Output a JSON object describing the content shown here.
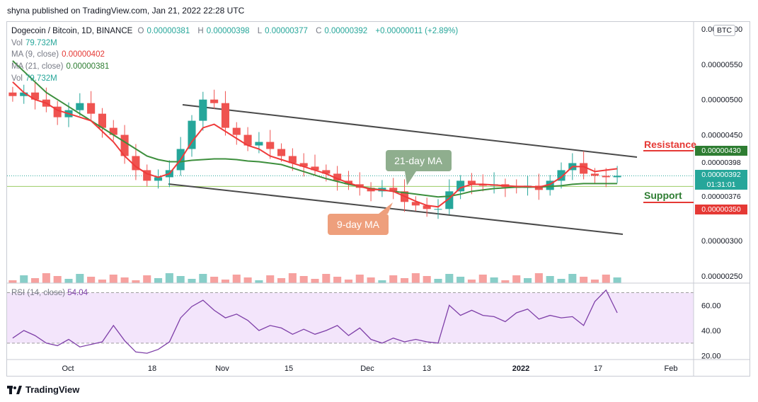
{
  "header": {
    "text": "shyna published on TradingView.com, Jan 21, 2022 22:28 UTC"
  },
  "legend": {
    "symbol": "Dogecoin / Bitcoin, 1D, BINANCE",
    "open_label": "O",
    "open": "0.00000381",
    "high_label": "H",
    "high": "0.00000398",
    "low_label": "L",
    "low": "0.00000377",
    "close_label": "C",
    "close": "0.00000392",
    "change": "+0.00000011 (+2.89%)",
    "vol_label": "Vol",
    "vol_value": "79.732M",
    "ma9_label": "MA (9, close)",
    "ma9_value": "0.00000402",
    "ma21_label": "MA (21, close)",
    "ma21_value": "0.00000381",
    "vol2_label": "Vol",
    "vol2_value": "79.732M"
  },
  "currency_badge": "BTC",
  "rsi": {
    "label": "RSI (14, close)",
    "value": "54.04"
  },
  "price_tags": {
    "resistance_level": "0.00000430",
    "high_level": "0.00000398",
    "current": "0.00000392",
    "countdown": "01:31:01",
    "low_level": "0.00000376",
    "support_level": "0.00000350"
  },
  "annotations": {
    "resistance": "Resistance",
    "support": "Support",
    "ma21": "21-day MA",
    "ma9": "9-day MA"
  },
  "footer": {
    "brand": "TradingView"
  },
  "colors": {
    "up": "#26a69a",
    "down": "#ef5350",
    "ma9": "#ef3b3b",
    "ma21": "#3d8f3d",
    "rsi": "#7e3fa8",
    "resistance": "#e53935",
    "support": "#e53935",
    "ma21_bubble": "#8fae8e",
    "ma9_bubble": "#ee9f7c"
  },
  "chart_data": {
    "type": "candlestick",
    "title": "Dogecoin / Bitcoin, 1D, BINANCE",
    "x_ticks": [
      "Oct",
      "18",
      "Nov",
      "15",
      "Dec",
      "13",
      "2022",
      "17",
      "Feb"
    ],
    "y_ticks": [
      "0.00000600",
      "0.00000550",
      "0.00000500",
      "0.00000450",
      "0.00000300",
      "0.00000250"
    ],
    "ylim": [
      2.4e-06,
      6.1e-06
    ],
    "rsi_ticks": [
      "60.00",
      "40.00",
      "20.00"
    ],
    "rsi_ylim": [
      17,
      77
    ],
    "rsi_bands": [
      70,
      30
    ],
    "close_series": [
      5.05,
      5.1,
      5.0,
      4.9,
      4.75,
      4.85,
      4.95,
      4.8,
      4.6,
      4.5,
      4.2,
      4.0,
      3.85,
      3.9,
      4.0,
      4.3,
      4.7,
      5.0,
      4.95,
      4.6,
      4.5,
      4.35,
      4.4,
      4.3,
      4.2,
      4.1,
      4.05,
      4.0,
      3.95,
      3.85,
      3.8,
      3.75,
      3.7,
      3.75,
      3.7,
      3.55,
      3.5,
      3.45,
      3.45,
      3.7,
      3.85,
      3.8,
      3.78,
      3.8,
      3.76,
      3.75,
      3.78,
      3.72,
      3.85,
      4.0,
      4.1,
      3.95,
      3.92,
      3.9,
      3.92
    ],
    "ma9_series": [
      5.25,
      5.1,
      5.0,
      4.95,
      4.85,
      4.8,
      4.75,
      4.7,
      4.55,
      4.4,
      4.2,
      4.05,
      3.95,
      3.9,
      3.95,
      4.15,
      4.4,
      4.6,
      4.65,
      4.55,
      4.45,
      4.35,
      4.3,
      4.2,
      4.15,
      4.1,
      4.05,
      4.0,
      3.95,
      3.88,
      3.82,
      3.77,
      3.73,
      3.72,
      3.7,
      3.63,
      3.56,
      3.5,
      3.48,
      3.6,
      3.75,
      3.8,
      3.8,
      3.79,
      3.78,
      3.77,
      3.77,
      3.76,
      3.8,
      3.9,
      4.05,
      4.05,
      3.98,
      4.0,
      4.02
    ],
    "ma21_series": [
      5.55,
      5.4,
      5.25,
      5.1,
      5.0,
      4.9,
      4.8,
      4.7,
      4.6,
      4.5,
      4.4,
      4.3,
      4.2,
      4.15,
      4.12,
      4.12,
      4.14,
      4.15,
      4.16,
      4.16,
      4.15,
      4.13,
      4.12,
      4.1,
      4.08,
      4.03,
      3.98,
      3.93,
      3.88,
      3.84,
      3.8,
      3.77,
      3.74,
      3.72,
      3.7,
      3.68,
      3.66,
      3.64,
      3.62,
      3.63,
      3.66,
      3.7,
      3.72,
      3.74,
      3.75,
      3.76,
      3.76,
      3.76,
      3.77,
      3.78,
      3.8,
      3.81,
      3.81,
      3.81,
      3.81
    ],
    "rsi_series": [
      34,
      40,
      36,
      30,
      28,
      33,
      27,
      29,
      31,
      44,
      32,
      23,
      22,
      25,
      31,
      50,
      59,
      64,
      56,
      50,
      53,
      48,
      40,
      44,
      42,
      37,
      41,
      37,
      40,
      44,
      36,
      42,
      33,
      30,
      34,
      31,
      33,
      31,
      30,
      60,
      52,
      56,
      52,
      51,
      47,
      54,
      57,
      49,
      52,
      50,
      51,
      44,
      63,
      72,
      54
    ]
  }
}
